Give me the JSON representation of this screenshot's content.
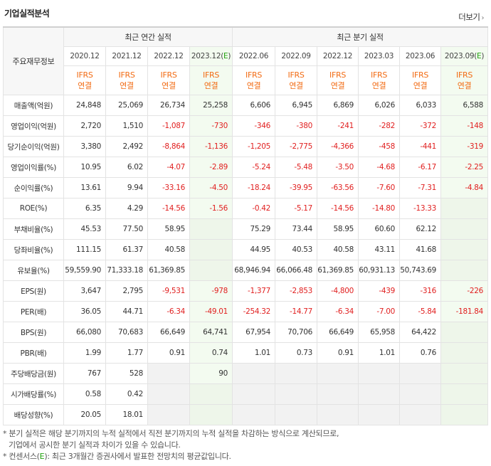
{
  "header": {
    "title": "기업실적분석",
    "more_label": "더보기"
  },
  "table": {
    "corner_label": "주요재무정보",
    "group_annual": "최근 연간 실적",
    "group_quarterly": "최근 분기 실적",
    "periods": [
      "2020.12",
      "2021.12",
      "2022.12",
      "2023.12(E)",
      "2022.06",
      "2022.09",
      "2022.12",
      "2023.03",
      "2023.06",
      "2023.09(E)"
    ],
    "ifrs_line1": "IFRS",
    "ifrs_line2": "연결",
    "rows": [
      {
        "label": "매출액(억원)",
        "values": [
          "24,848",
          "25,069",
          "26,734",
          "25,258",
          "6,606",
          "6,945",
          "6,869",
          "6,026",
          "6,033",
          "6,588"
        ]
      },
      {
        "label": "영업이익(억원)",
        "values": [
          "2,720",
          "1,510",
          "-1,087",
          "-730",
          "-346",
          "-380",
          "-241",
          "-282",
          "-372",
          "-148"
        ]
      },
      {
        "label": "당기순이익(억원)",
        "values": [
          "3,380",
          "2,492",
          "-8,864",
          "-1,136",
          "-1,205",
          "-2,775",
          "-4,366",
          "-458",
          "-441",
          "-319"
        ]
      },
      {
        "label": "영업이익률(%)",
        "values": [
          "10.95",
          "6.02",
          "-4.07",
          "-2.89",
          "-5.24",
          "-5.48",
          "-3.50",
          "-4.68",
          "-6.17",
          "-2.25"
        ]
      },
      {
        "label": "순이익률(%)",
        "values": [
          "13.61",
          "9.94",
          "-33.16",
          "-4.50",
          "-18.24",
          "-39.95",
          "-63.56",
          "-7.60",
          "-7.31",
          "-4.84"
        ]
      },
      {
        "label": "ROE(%)",
        "values": [
          "6.35",
          "4.29",
          "-14.56",
          "-1.56",
          "-0.42",
          "-5.17",
          "-14.56",
          "-14.80",
          "-13.33",
          ""
        ]
      },
      {
        "label": "부채비율(%)",
        "values": [
          "45.53",
          "77.50",
          "58.95",
          "",
          "75.29",
          "73.44",
          "58.95",
          "60.60",
          "62.12",
          ""
        ]
      },
      {
        "label": "당좌비율(%)",
        "values": [
          "111.15",
          "61.37",
          "40.58",
          "",
          "44.95",
          "40.53",
          "40.58",
          "43.11",
          "41.68",
          ""
        ]
      },
      {
        "label": "유보율(%)",
        "values": [
          "59,559.90",
          "71,333.18",
          "61,369.85",
          "",
          "68,946.94",
          "66,066.48",
          "61,369.85",
          "60,931.13",
          "50,743.69",
          ""
        ]
      },
      {
        "label": "EPS(원)",
        "values": [
          "3,647",
          "2,795",
          "-9,531",
          "-978",
          "-1,377",
          "-2,853",
          "-4,800",
          "-439",
          "-316",
          "-226"
        ]
      },
      {
        "label": "PER(배)",
        "values": [
          "36.05",
          "44.71",
          "-6.34",
          "-49.01",
          "-254.32",
          "-14.77",
          "-6.34",
          "-7.00",
          "-5.84",
          "-181.84"
        ]
      },
      {
        "label": "BPS(원)",
        "values": [
          "66,080",
          "70,683",
          "66,649",
          "64,741",
          "67,954",
          "70,706",
          "66,649",
          "65,958",
          "64,422",
          ""
        ]
      },
      {
        "label": "PBR(배)",
        "values": [
          "1.99",
          "1.77",
          "0.91",
          "0.74",
          "1.01",
          "0.73",
          "0.91",
          "1.01",
          "0.76",
          ""
        ]
      },
      {
        "label": "주당배당금(원)",
        "values": [
          "767",
          "528",
          "",
          "90",
          "",
          "",
          "",
          "",
          "",
          ""
        ]
      },
      {
        "label": "시가배당률(%)",
        "values": [
          "0.58",
          "0.42",
          "",
          "",
          "",
          "",
          "",
          "",
          "",
          ""
        ]
      },
      {
        "label": "배당성향(%)",
        "values": [
          "20.05",
          "18.01",
          "",
          "",
          "",
          "",
          "",
          "",
          "",
          ""
        ]
      }
    ]
  },
  "notes": {
    "line1": "* 분기 실적은 해당 분기까지의 누적 실적에서 직전 분기까지의 누적 실적을 차감하는 방식으로 계산되므로,",
    "line2": "기업에서 공시한 분기 실적과 차이가 있을 수 있습니다.",
    "line3_prefix": "* 컨센서스(",
    "line3_e": "E",
    "line3_suffix": "): 최근 3개월간 증권사에서 발표한 전망치의 평균값입니다."
  },
  "colors": {
    "negative": "#e12020",
    "ifrs": "#f26b13",
    "estimate": "#21a20f",
    "estimate_bg": "#f3fbf0"
  }
}
